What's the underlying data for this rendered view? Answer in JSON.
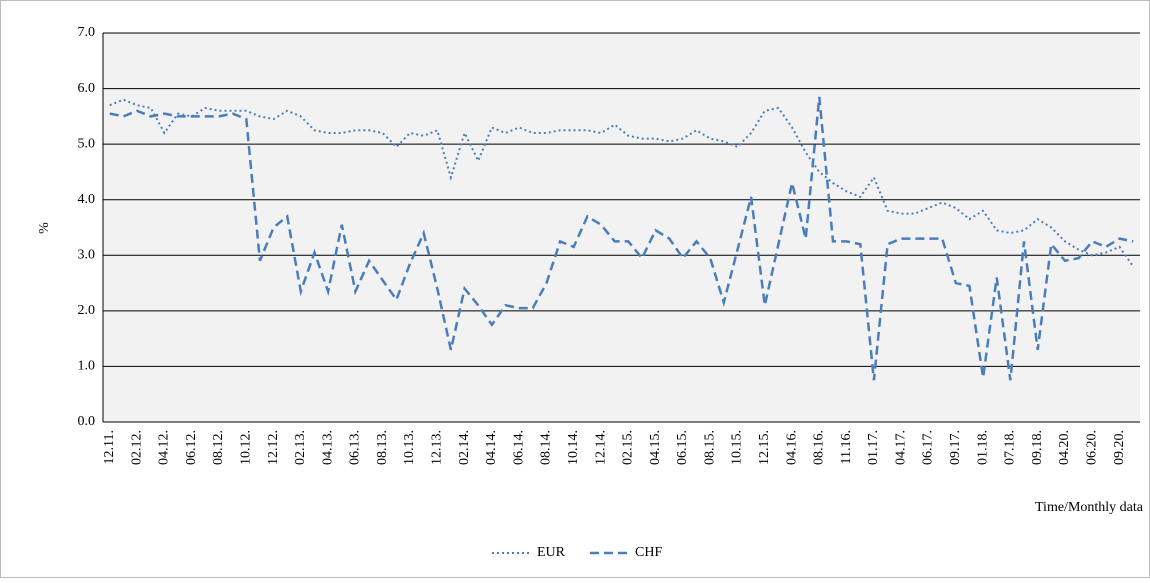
{
  "chart_data": {
    "type": "line",
    "y_label": "%",
    "x_label": "Time/Monthly data",
    "categories": [
      "12.11.",
      null,
      "02.12.",
      null,
      "04.12.",
      null,
      "06.12.",
      null,
      "08.12.",
      null,
      "10.12.",
      null,
      "12.12.",
      null,
      "02.13.",
      null,
      "04.13.",
      null,
      "06.13.",
      null,
      "08.13.",
      null,
      "10.13.",
      null,
      "12.13.",
      null,
      "02.14.",
      null,
      "04.14.",
      null,
      "06.14.",
      null,
      "08.14.",
      null,
      "10.14.",
      null,
      "12.14.",
      null,
      "02.15.",
      null,
      "04.15.",
      null,
      "06.15.",
      null,
      "08.15.",
      null,
      "10.15.",
      null,
      "12.15.",
      null,
      "04.16.",
      null,
      "08.16.",
      null,
      "11.16.",
      null,
      "01.17.",
      null,
      "04.17.",
      null,
      "06.17.",
      null,
      "09.17.",
      null,
      "01.18.",
      null,
      "07.18.",
      null,
      "09.18.",
      null,
      "04.20.",
      null,
      "06.20.",
      null,
      "09.20.",
      null
    ],
    "series": [
      {
        "name": "EUR",
        "color": "#4a7ebb",
        "dash": "dotted",
        "values": [
          5.7,
          5.8,
          5.7,
          5.65,
          5.2,
          5.55,
          5.5,
          5.65,
          5.6,
          5.6,
          5.6,
          5.5,
          5.45,
          5.6,
          5.5,
          5.25,
          5.2,
          5.2,
          5.25,
          5.25,
          5.2,
          4.95,
          5.2,
          5.15,
          5.25,
          4.4,
          5.2,
          4.7,
          5.3,
          5.2,
          5.3,
          5.2,
          5.2,
          5.25,
          5.25,
          5.25,
          5.2,
          5.35,
          5.15,
          5.1,
          5.1,
          5.05,
          5.1,
          5.25,
          5.1,
          5.05,
          4.95,
          5.2,
          5.6,
          5.65,
          5.3,
          4.85,
          4.5,
          4.3,
          4.15,
          4.05,
          4.4,
          3.8,
          3.75,
          3.75,
          3.85,
          3.95,
          3.85,
          3.65,
          3.8,
          3.45,
          3.4,
          3.45,
          3.65,
          3.5,
          3.25,
          3.1,
          3.0,
          3.05,
          3.15,
          2.8
        ]
      },
      {
        "name": "CHF",
        "color": "#4a7ebb",
        "dash": "dashed",
        "values": [
          5.55,
          5.5,
          5.6,
          5.5,
          5.55,
          5.5,
          5.5,
          5.5,
          5.5,
          5.55,
          5.45,
          2.9,
          3.5,
          3.7,
          2.35,
          3.05,
          2.35,
          3.55,
          2.35,
          2.9,
          2.55,
          2.2,
          2.85,
          3.4,
          2.4,
          1.3,
          2.4,
          2.1,
          1.75,
          2.1,
          2.05,
          2.05,
          2.5,
          3.25,
          3.15,
          3.7,
          3.55,
          3.25,
          3.25,
          2.95,
          3.45,
          3.3,
          2.95,
          3.25,
          2.95,
          2.15,
          3.1,
          4.05,
          2.1,
          3.2,
          4.3,
          3.3,
          5.85,
          3.25,
          3.25,
          3.2,
          0.75,
          3.2,
          3.3,
          3.3,
          3.3,
          3.3,
          2.5,
          2.45,
          0.8,
          2.6,
          0.75,
          3.25,
          1.3,
          3.2,
          2.9,
          2.95,
          3.25,
          3.15,
          3.3,
          3.25
        ]
      }
    ],
    "ylim": [
      0,
      7
    ],
    "yticks": [
      {
        "value": 0,
        "label": "0.0"
      },
      {
        "value": 1,
        "label": "1.0"
      },
      {
        "value": 2,
        "label": "2.0"
      },
      {
        "value": 3,
        "label": "3.0"
      },
      {
        "value": 4,
        "label": "4.0"
      },
      {
        "value": 5,
        "label": "5.0"
      },
      {
        "value": 6,
        "label": "6.0"
      },
      {
        "value": 7,
        "label": "7.0"
      }
    ],
    "grid": true,
    "legend": "bottom"
  }
}
